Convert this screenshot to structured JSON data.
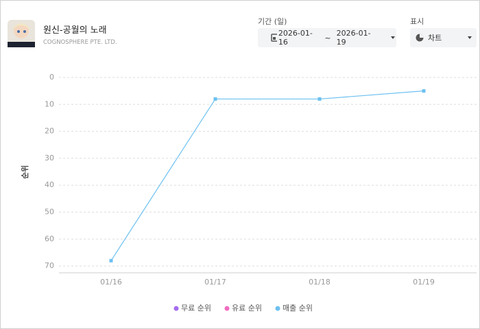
{
  "header": {
    "app_title": "원신-공월의 노래",
    "developer": "COGNOSPHERE PTE. LTD.",
    "period_label": "기간 (일)",
    "date_from": "2026-01-16",
    "date_sep": "~",
    "date_to": "2026-01-19",
    "display_label": "표시",
    "display_value": "차트"
  },
  "chart_data": {
    "type": "line",
    "y_label": "순위",
    "categories": [
      "01/16",
      "01/17",
      "01/18",
      "01/19"
    ],
    "series": [
      {
        "name": "무료 순위",
        "color": "#a56cf0",
        "values": [
          null,
          null,
          null,
          null
        ]
      },
      {
        "name": "유료 순위",
        "color": "#f06cc0",
        "values": [
          null,
          null,
          null,
          null
        ]
      },
      {
        "name": "매출 순위",
        "color": "#6cc0f0",
        "values": [
          68,
          8,
          8,
          5
        ]
      }
    ],
    "ylim": [
      72.5,
      0
    ],
    "yticks": [
      0,
      10,
      20,
      30,
      40,
      50,
      60,
      70
    ],
    "grid": true,
    "legend": "bottom"
  }
}
